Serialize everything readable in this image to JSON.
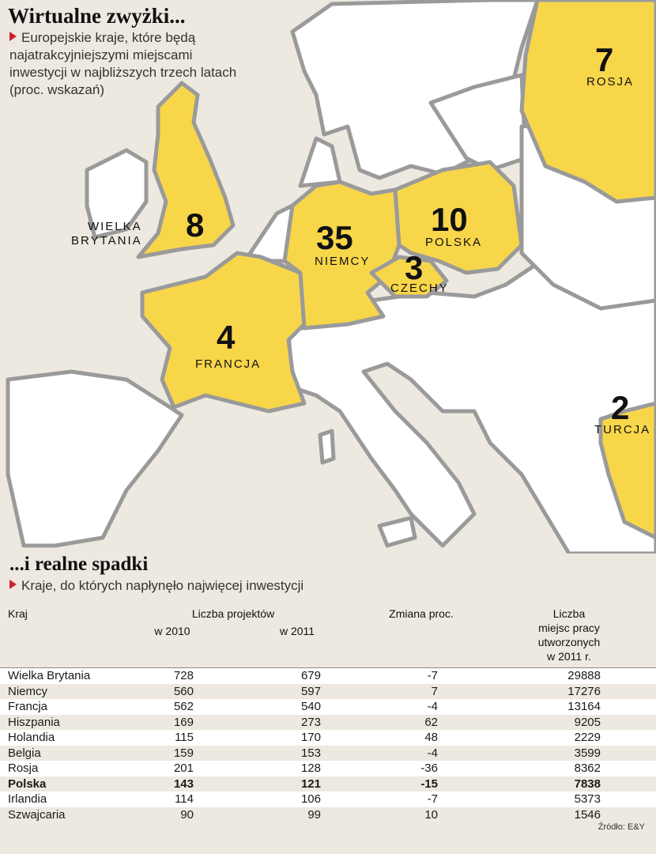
{
  "map": {
    "title": "Wirtualne zwyżki...",
    "subtitle_lines": [
      "Europejskie kraje, które będą",
      "najatrakcyjniejszymi miejscami",
      "inwestycji w najbliższych trzech latach",
      "(proc. wskazań)"
    ],
    "countries": [
      {
        "name": "WIELKA\nBRYTANIA",
        "value": "8"
      },
      {
        "name": "NIEMCY",
        "value": "35"
      },
      {
        "name": "POLSKA",
        "value": "10"
      },
      {
        "name": "CZECHY",
        "value": "3"
      },
      {
        "name": "FRANCJA",
        "value": "4"
      },
      {
        "name": "ROSJA",
        "value": "7"
      },
      {
        "name": "TURCJA",
        "value": "2"
      }
    ],
    "colors": {
      "highlight": "#f8d64a",
      "land": "#ffffff",
      "border": "#9a9a9a",
      "sea": "#ede9e0"
    }
  },
  "table": {
    "title": "...i realne spadki",
    "subtitle": "Kraje, do których napłynęło najwięcej inwestycji",
    "headers": {
      "country": "Kraj",
      "projects": "Liczba projektów",
      "y2010": "w 2010",
      "y2011": "w 2011",
      "change": "Zmiana proc.",
      "jobs_lines": [
        "Liczba",
        "miejsc pracy",
        "utworzonych",
        "w 2011 r."
      ]
    },
    "rows": [
      {
        "country": "Wielka Brytania",
        "p2010": "728",
        "p2011": "679",
        "change": "-7",
        "jobs": "29888"
      },
      {
        "country": "Niemcy",
        "p2010": "560",
        "p2011": "597",
        "change": "7",
        "jobs": "17276"
      },
      {
        "country": "Francja",
        "p2010": "562",
        "p2011": "540",
        "change": "-4",
        "jobs": "13164"
      },
      {
        "country": "Hiszpania",
        "p2010": "169",
        "p2011": "273",
        "change": "62",
        "jobs": "9205"
      },
      {
        "country": "Holandia",
        "p2010": "115",
        "p2011": "170",
        "change": "48",
        "jobs": "2229"
      },
      {
        "country": "Belgia",
        "p2010": "159",
        "p2011": "153",
        "change": "-4",
        "jobs": "3599"
      },
      {
        "country": "Rosja",
        "p2010": "201",
        "p2011": "128",
        "change": "-36",
        "jobs": "8362"
      },
      {
        "country": "Polska",
        "p2010": "143",
        "p2011": "121",
        "change": "-15",
        "jobs": "7838",
        "highlight": true
      },
      {
        "country": "Irlandia",
        "p2010": "114",
        "p2011": "106",
        "change": "-7",
        "jobs": "5373"
      },
      {
        "country": "Szwajcaria",
        "p2010": "90",
        "p2011": "99",
        "change": "10",
        "jobs": "1546"
      }
    ],
    "source": "Źródło: E&Y"
  }
}
